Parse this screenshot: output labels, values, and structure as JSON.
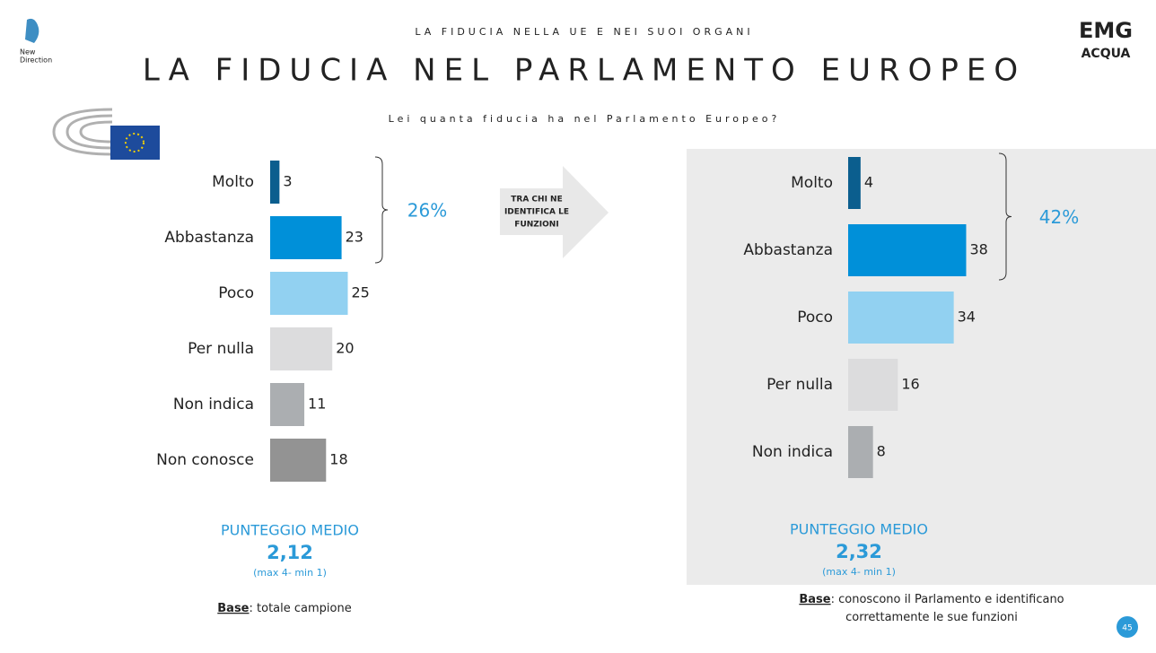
{
  "header": {
    "kicker": "LA FIDUCIA NELLA UE E NEI SUOI ORGANI",
    "title": "LA FIDUCIA NEL PARLAMENTO EUROPEO",
    "question": "Lei quanta fiducia ha nel Parlamento Europeo?"
  },
  "logos": {
    "left": [
      "New",
      "Direction"
    ],
    "right": [
      "EMG",
      "ACQUA"
    ]
  },
  "arrow": [
    "TRA CHI  NE",
    "IDENTIFICA LE",
    "FUNZIONI"
  ],
  "page_number": "45",
  "chart_data": [
    {
      "type": "bar",
      "orientation": "horizontal",
      "categories": [
        "Molto",
        "Abbastanza",
        "Poco",
        "Per nulla",
        "Non indica",
        "Non conosce"
      ],
      "values": [
        3,
        23,
        25,
        20,
        11,
        18
      ],
      "colors": [
        "#0b5e8e",
        "#0090d9",
        "#92d1f1",
        "#dcdcdd",
        "#abaeb1",
        "#939393"
      ],
      "bracket": "26%",
      "score_title": "PUNTEGGIO MEDIO",
      "score": "2,12",
      "score_range": "(max 4- min 1)",
      "base_label": "Base",
      "base_text": [
        ": totale campione"
      ]
    },
    {
      "type": "bar",
      "orientation": "horizontal",
      "categories": [
        "Molto",
        "Abbastanza",
        "Poco",
        "Per nulla",
        "Non indica"
      ],
      "values": [
        4,
        38,
        34,
        16,
        8
      ],
      "colors": [
        "#0b5e8e",
        "#0090d9",
        "#92d1f1",
        "#dcdcdd",
        "#abaeb1"
      ],
      "bracket": "42%",
      "score_title": "PUNTEGGIO MEDIO",
      "score": "2,32",
      "score_range": "(max 4- min 1)",
      "base_label": "Base",
      "base_text": [
        ": conoscono il Parlamento e identificano",
        "correttamente le sue funzioni"
      ]
    }
  ]
}
